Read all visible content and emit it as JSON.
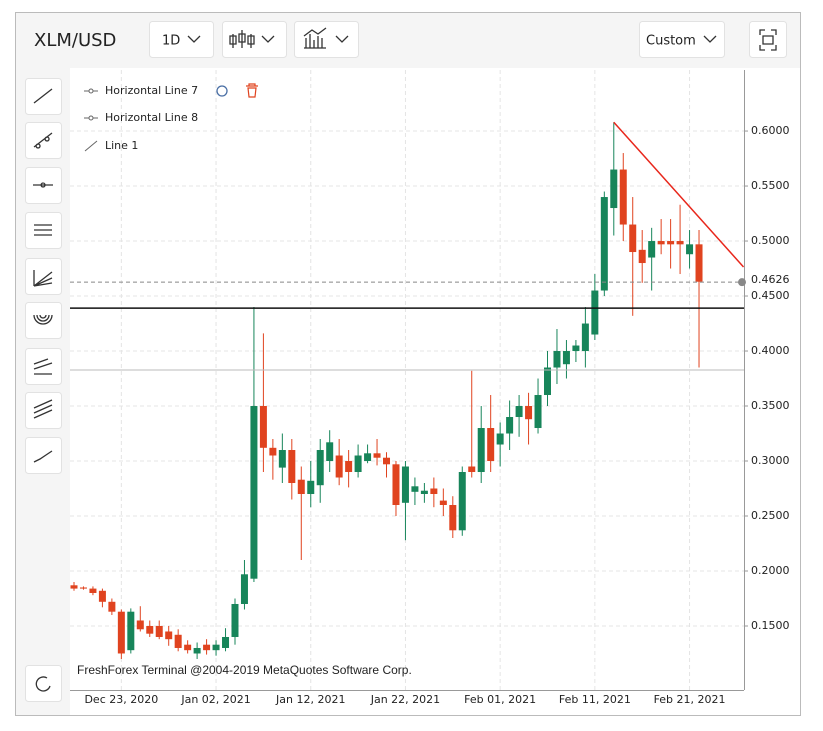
{
  "header": {
    "symbol": "XLM/USD",
    "timeframe": "1D",
    "view": "Custom"
  },
  "drawings": [
    "Horizontal Line 7",
    "Horizontal Line 8",
    "Line 1"
  ],
  "watermark": "FreshForex Terminal @2004-2019 MetaQuotes Software Corp.",
  "chart_data": {
    "type": "candlestick",
    "categories": [
      null,
      null,
      null,
      null,
      null,
      "Dec 23, 2020",
      null,
      null,
      null,
      null,
      null,
      null,
      null,
      null,
      null,
      "Jan 02, 2021",
      null,
      null,
      null,
      null,
      null,
      null,
      null,
      null,
      null,
      "Jan 12, 2021",
      null,
      null,
      null,
      null,
      null,
      null,
      null,
      null,
      null,
      "Jan 22, 2021",
      null,
      null,
      null,
      null,
      null,
      null,
      null,
      null,
      null,
      "Feb 01, 2021",
      null,
      null,
      null,
      null,
      null,
      null,
      null,
      null,
      null,
      "Feb 11, 2021",
      null,
      null,
      null,
      null,
      null,
      null,
      null,
      null,
      null,
      "Feb 21, 2021",
      null
    ],
    "open": [
      0.187,
      0.185,
      0.184,
      0.182,
      0.172,
      0.163,
      0.128,
      0.155,
      0.15,
      0.15,
      0.145,
      0.142,
      0.133,
      0.125,
      0.133,
      0.128,
      0.13,
      0.14,
      0.17,
      0.193,
      0.35,
      0.312,
      0.294,
      0.31,
      0.283,
      0.27,
      0.278,
      0.3,
      0.305,
      0.3,
      0.29,
      0.3,
      0.307,
      0.303,
      0.297,
      0.262,
      0.272,
      0.27,
      0.275,
      0.264,
      0.26,
      0.237,
      0.295,
      0.29,
      0.33,
      0.315,
      0.325,
      0.34,
      0.35,
      0.33,
      0.36,
      0.385,
      0.388,
      0.4,
      0.4,
      0.415,
      0.455,
      0.53,
      0.565,
      0.515,
      0.492,
      0.485,
      0.5,
      0.5,
      0.5,
      0.488,
      0.497
    ],
    "high": [
      0.19,
      0.186,
      0.186,
      0.184,
      0.175,
      0.165,
      0.166,
      0.168,
      0.155,
      0.155,
      0.15,
      0.147,
      0.137,
      0.135,
      0.138,
      0.137,
      0.148,
      0.175,
      0.21,
      0.44,
      0.416,
      0.32,
      0.325,
      0.32,
      0.295,
      0.3,
      0.32,
      0.328,
      0.32,
      0.31,
      0.315,
      0.315,
      0.32,
      0.308,
      0.3,
      0.3,
      0.285,
      0.28,
      0.285,
      0.275,
      0.268,
      0.295,
      0.382,
      0.35,
      0.36,
      0.335,
      0.355,
      0.36,
      0.362,
      0.375,
      0.4,
      0.42,
      0.41,
      0.41,
      0.44,
      0.47,
      0.545,
      0.608,
      0.58,
      0.54,
      0.51,
      0.512,
      0.52,
      0.52,
      0.533,
      0.51,
      0.51
    ],
    "low": [
      0.182,
      0.183,
      0.178,
      0.167,
      0.16,
      0.12,
      0.125,
      0.145,
      0.14,
      0.138,
      0.132,
      0.127,
      0.125,
      0.12,
      0.124,
      0.123,
      0.127,
      0.133,
      0.165,
      0.19,
      0.29,
      0.283,
      0.28,
      0.265,
      0.21,
      0.258,
      0.262,
      0.29,
      0.278,
      0.276,
      0.285,
      0.298,
      0.296,
      0.285,
      0.25,
      0.228,
      0.26,
      0.262,
      0.258,
      0.25,
      0.23,
      0.232,
      0.285,
      0.28,
      0.29,
      0.295,
      0.31,
      0.322,
      0.315,
      0.325,
      0.35,
      0.37,
      0.375,
      0.39,
      0.385,
      0.41,
      0.45,
      0.505,
      0.5,
      0.432,
      0.462,
      0.455,
      0.488,
      0.475,
      0.47,
      0.475,
      0.385
    ],
    "close": [
      0.184,
      0.184,
      0.18,
      0.172,
      0.163,
      0.125,
      0.163,
      0.147,
      0.143,
      0.14,
      0.138,
      0.13,
      0.128,
      0.13,
      0.128,
      0.133,
      0.14,
      0.17,
      0.197,
      0.35,
      0.312,
      0.305,
      0.31,
      0.28,
      0.27,
      0.282,
      0.31,
      0.317,
      0.285,
      0.29,
      0.305,
      0.307,
      0.303,
      0.297,
      0.26,
      0.295,
      0.277,
      0.273,
      0.27,
      0.26,
      0.237,
      0.29,
      0.29,
      0.33,
      0.3,
      0.325,
      0.34,
      0.35,
      0.338,
      0.36,
      0.385,
      0.4,
      0.4,
      0.405,
      0.425,
      0.455,
      0.54,
      0.565,
      0.515,
      0.49,
      0.48,
      0.5,
      0.497,
      0.497,
      0.497,
      0.497,
      0.463
    ],
    "up_color": "#17855a",
    "down_color": "#e0431f",
    "ylim": [
      0.0918,
      0.6555
    ],
    "yticks": [
      {
        "value": 0.15,
        "label": "0.1500"
      },
      {
        "value": 0.2,
        "label": "0.2000"
      },
      {
        "value": 0.25,
        "label": "0.2500"
      },
      {
        "value": 0.3,
        "label": "0.3000"
      },
      {
        "value": 0.35,
        "label": "0.3500"
      },
      {
        "value": 0.4,
        "label": "0.4000"
      },
      {
        "value": 0.45,
        "label": "0.4500"
      },
      {
        "value": 0.5,
        "label": "0.5000"
      },
      {
        "value": 0.55,
        "label": "0.5500"
      },
      {
        "value": 0.6,
        "label": "0.6000"
      }
    ],
    "grid": true,
    "current_price": 0.4626,
    "hlines": [
      {
        "value": 0.439,
        "color": "#111111"
      },
      {
        "value": 0.3827,
        "color": "#bbbbbb"
      }
    ],
    "trendline": {
      "x": [
        57,
        70.7
      ],
      "y": [
        0.608,
        0.4764
      ],
      "color": "#e8271c"
    }
  }
}
